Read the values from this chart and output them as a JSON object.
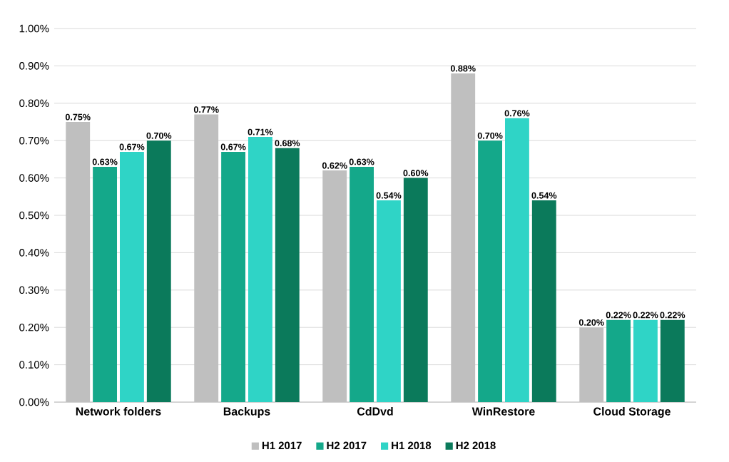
{
  "chart_data": {
    "type": "bar",
    "categories": [
      "Network folders",
      "Backups",
      "CdDvd",
      "WinRestore",
      "Cloud Storage"
    ],
    "series": [
      {
        "name": "H1 2017",
        "color": "#bfbfbf",
        "values": [
          0.75,
          0.77,
          0.62,
          0.88,
          0.2
        ],
        "value_labels": [
          "0.75%",
          "0.77%",
          "0.62%",
          "0.88%",
          "0.20%"
        ]
      },
      {
        "name": "H2 2017",
        "color": "#14a88a",
        "values": [
          0.63,
          0.67,
          0.63,
          0.7,
          0.22
        ],
        "value_labels": [
          "0.63%",
          "0.67%",
          "0.63%",
          "0.70%",
          "0.22%"
        ]
      },
      {
        "name": "H1 2018",
        "color": "#2fd4c6",
        "values": [
          0.67,
          0.71,
          0.54,
          0.76,
          0.22
        ],
        "value_labels": [
          "0.67%",
          "0.71%",
          "0.54%",
          "0.76%",
          "0.22%"
        ]
      },
      {
        "name": "H2 2018",
        "color": "#0b7a5b",
        "values": [
          0.7,
          0.68,
          0.6,
          0.54,
          0.22
        ],
        "value_labels": [
          "0.70%",
          "0.68%",
          "0.60%",
          "0.54%",
          "0.22%"
        ]
      }
    ],
    "ylim": [
      0,
      1.0
    ],
    "yticks": [
      {
        "value": 0,
        "label": "0.00%"
      },
      {
        "value": 0.1,
        "label": "0.10%"
      },
      {
        "value": 0.2,
        "label": "0.20%"
      },
      {
        "value": 0.3,
        "label": "0.30%"
      },
      {
        "value": 0.4,
        "label": "0.40%"
      },
      {
        "value": 0.5,
        "label": "0.50%"
      },
      {
        "value": 0.6,
        "label": "0.60%"
      },
      {
        "value": 0.7,
        "label": "0.70%"
      },
      {
        "value": 0.8,
        "label": "0.80%"
      },
      {
        "value": 0.9,
        "label": "0.90%"
      },
      {
        "value": 1.0,
        "label": "1.00%"
      }
    ],
    "grid": "y",
    "legend": "bottom"
  }
}
